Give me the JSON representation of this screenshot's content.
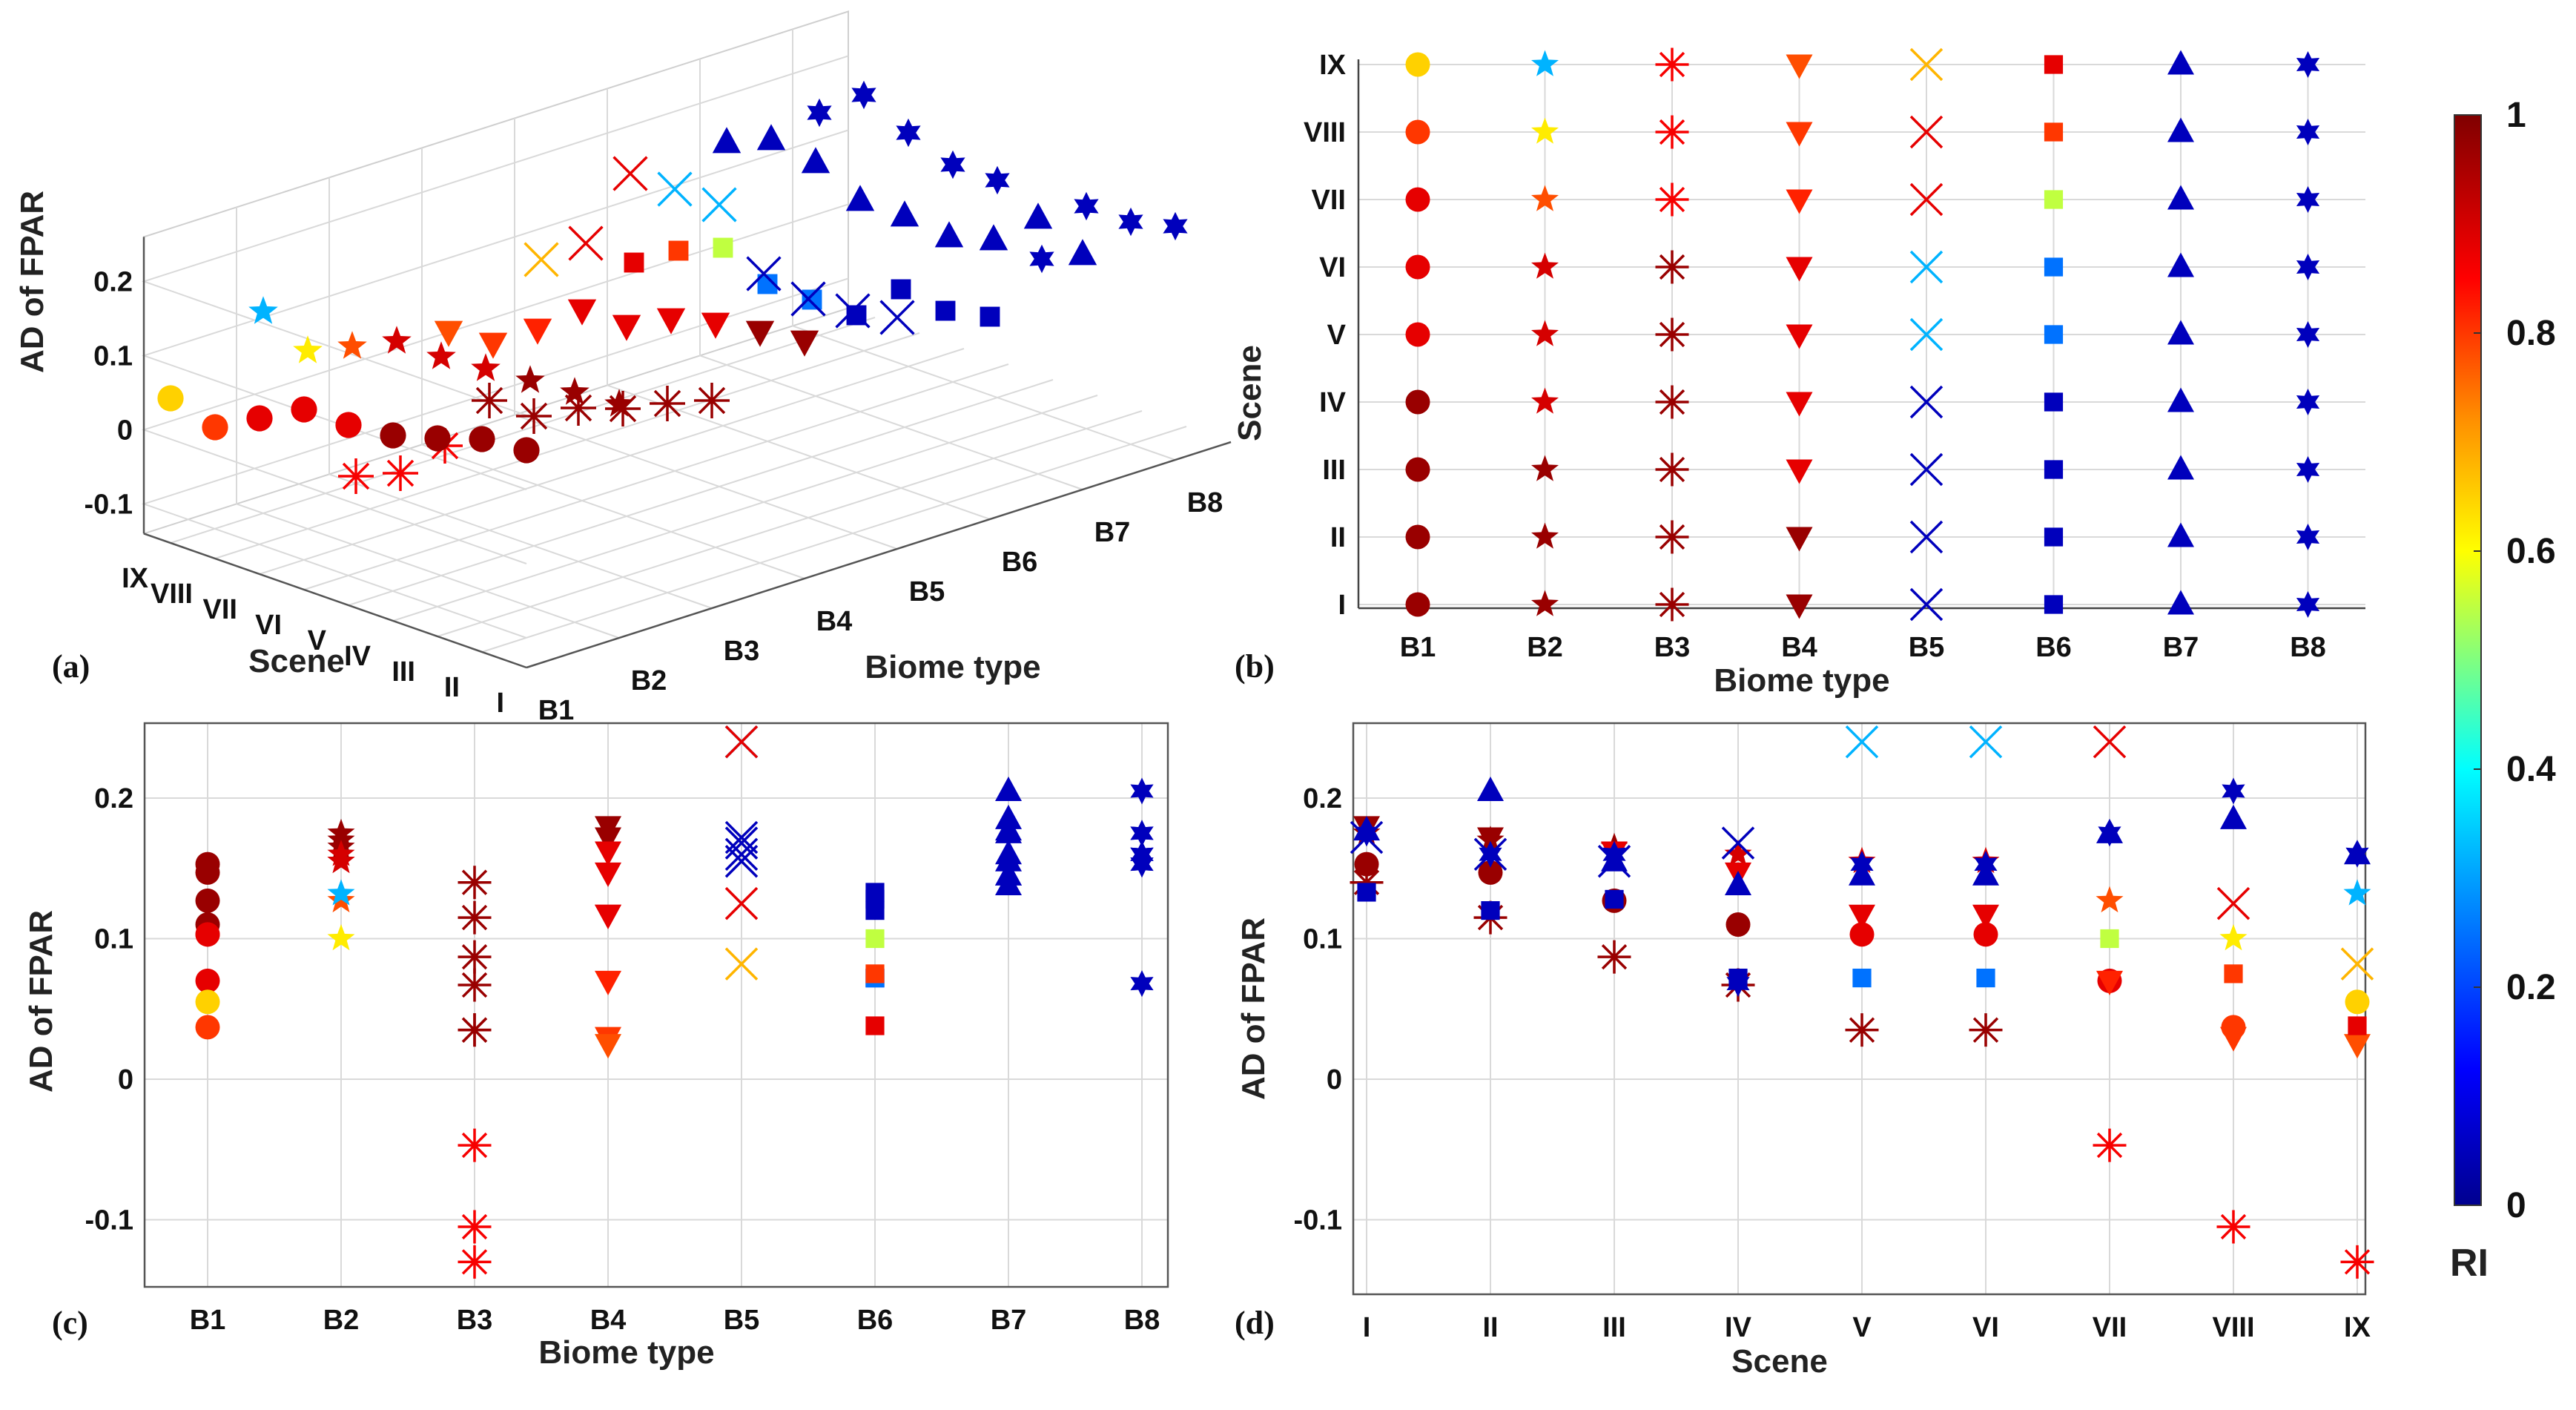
{
  "figure": {
    "panel_labels": [
      "(a)",
      "(b)",
      "(c)",
      "(d)"
    ],
    "colorbar": {
      "label": "RI",
      "range": [
        0,
        1
      ],
      "ticks": [
        "0",
        "0.2",
        "0.4",
        "0.6",
        "0.8",
        "1"
      ],
      "colormap": [
        "#00008f",
        "#0000ff",
        "#00a0ff",
        "#00ffff",
        "#80ff80",
        "#ffff00",
        "#ff9000",
        "#ff0000",
        "#800000"
      ]
    }
  },
  "chart_data": [
    {
      "panel": "(a)",
      "type": "scatter",
      "title": "",
      "xlabel": "Biome type",
      "ylabel": "AD of FPAR",
      "zlabel": "Scene",
      "x_ticks": [
        "B1",
        "B2",
        "B3",
        "B4",
        "B5",
        "B6",
        "B7",
        "B8"
      ],
      "scene_ticks": [
        "I",
        "II",
        "III",
        "IV",
        "V",
        "VI",
        "VII",
        "VIII",
        "IX"
      ],
      "y_ticks": [
        "-0.1",
        "0",
        "0.1",
        "0.2"
      ],
      "view": "3D perspective of AD of FPAR by biome type and scene"
    },
    {
      "panel": "(b)",
      "type": "scatter",
      "title": "",
      "xlabel": "Biome type",
      "ylabel": "Scene",
      "x_ticks": [
        "B1",
        "B2",
        "B3",
        "B4",
        "B5",
        "B6",
        "B7",
        "B8"
      ],
      "y_ticks": [
        "I",
        "II",
        "III",
        "IV",
        "V",
        "VI",
        "VII",
        "VIII",
        "IX"
      ],
      "color": "RI of each biome/scene combination"
    },
    {
      "panel": "(c)",
      "type": "scatter",
      "title": "",
      "xlabel": "Biome type",
      "ylabel": "AD of FPAR",
      "x_ticks": [
        "B1",
        "B2",
        "B3",
        "B4",
        "B5",
        "B6",
        "B7",
        "B8"
      ],
      "y_ticks": [
        "-0.1",
        "0",
        "0.1",
        "0.2"
      ],
      "ylim": [
        -0.15,
        0.25
      ]
    },
    {
      "panel": "(d)",
      "type": "scatter",
      "title": "",
      "xlabel": "Scene",
      "ylabel": "AD of FPAR",
      "x_ticks": [
        "I",
        "II",
        "III",
        "IV",
        "V",
        "VI",
        "VII",
        "VIII",
        "IX"
      ],
      "y_ticks": [
        "-0.1",
        "0",
        "0.1",
        "0.2"
      ],
      "ylim": [
        -0.15,
        0.25
      ]
    }
  ],
  "biomes": [
    {
      "name": "B1",
      "marker": "circle",
      "ad": [
        0.153,
        0.147,
        0.127,
        0.11,
        0.103,
        0.103,
        0.07,
        0.037,
        0.055
      ],
      "ri": [
        0.97,
        0.97,
        0.97,
        0.97,
        0.88,
        0.88,
        0.88,
        0.8,
        0.65
      ]
    },
    {
      "name": "B2",
      "marker": "star5",
      "ad": [
        0.175,
        0.17,
        0.165,
        0.16,
        0.155,
        0.155,
        0.127,
        0.1,
        0.132
      ],
      "ri": [
        0.97,
        0.97,
        0.97,
        0.9,
        0.9,
        0.9,
        0.78,
        0.62,
        0.32
      ]
    },
    {
      "name": "B3",
      "marker": "asterisk",
      "ad": [
        0.14,
        0.115,
        0.087,
        0.067,
        0.035,
        0.035,
        -0.047,
        -0.105,
        -0.13
      ],
      "ri": [
        0.97,
        0.97,
        0.97,
        0.97,
        0.97,
        0.97,
        0.86,
        0.86,
        0.86
      ]
    },
    {
      "name": "B4",
      "marker": "tri-down",
      "ad": [
        0.18,
        0.172,
        0.162,
        0.147,
        0.117,
        0.117,
        0.07,
        0.03,
        0.025
      ],
      "ri": [
        0.97,
        0.97,
        0.88,
        0.88,
        0.88,
        0.88,
        0.82,
        0.8,
        0.78
      ]
    },
    {
      "name": "B5",
      "marker": "x",
      "ad": [
        0.172,
        0.16,
        0.155,
        0.168,
        0.24,
        0.24,
        0.24,
        0.125,
        0.082
      ],
      "ri": [
        0.05,
        0.05,
        0.05,
        0.05,
        0.32,
        0.32,
        0.88,
        0.88,
        0.68
      ]
    },
    {
      "name": "B6",
      "marker": "square",
      "ad": [
        0.133,
        0.12,
        0.128,
        0.072,
        0.072,
        0.072,
        0.1,
        0.075,
        0.038
      ],
      "ri": [
        0.05,
        0.05,
        0.05,
        0.05,
        0.25,
        0.25,
        0.55,
        0.8,
        0.88
      ]
    },
    {
      "name": "B7",
      "marker": "tri-up",
      "ad": [
        0.177,
        0.205,
        0.155,
        0.138,
        0.145,
        0.145,
        0.175,
        0.185,
        0.16
      ],
      "ri": [
        0.05,
        0.05,
        0.05,
        0.05,
        0.05,
        0.05,
        0.05,
        0.05,
        0.05
      ]
    },
    {
      "name": "B8",
      "marker": "star6",
      "ad": [
        0.175,
        0.16,
        0.16,
        0.068,
        0.153,
        0.153,
        0.175,
        0.205,
        0.16
      ],
      "ri": [
        0.05,
        0.05,
        0.05,
        0.05,
        0.05,
        0.05,
        0.05,
        0.05,
        0.05
      ]
    }
  ]
}
